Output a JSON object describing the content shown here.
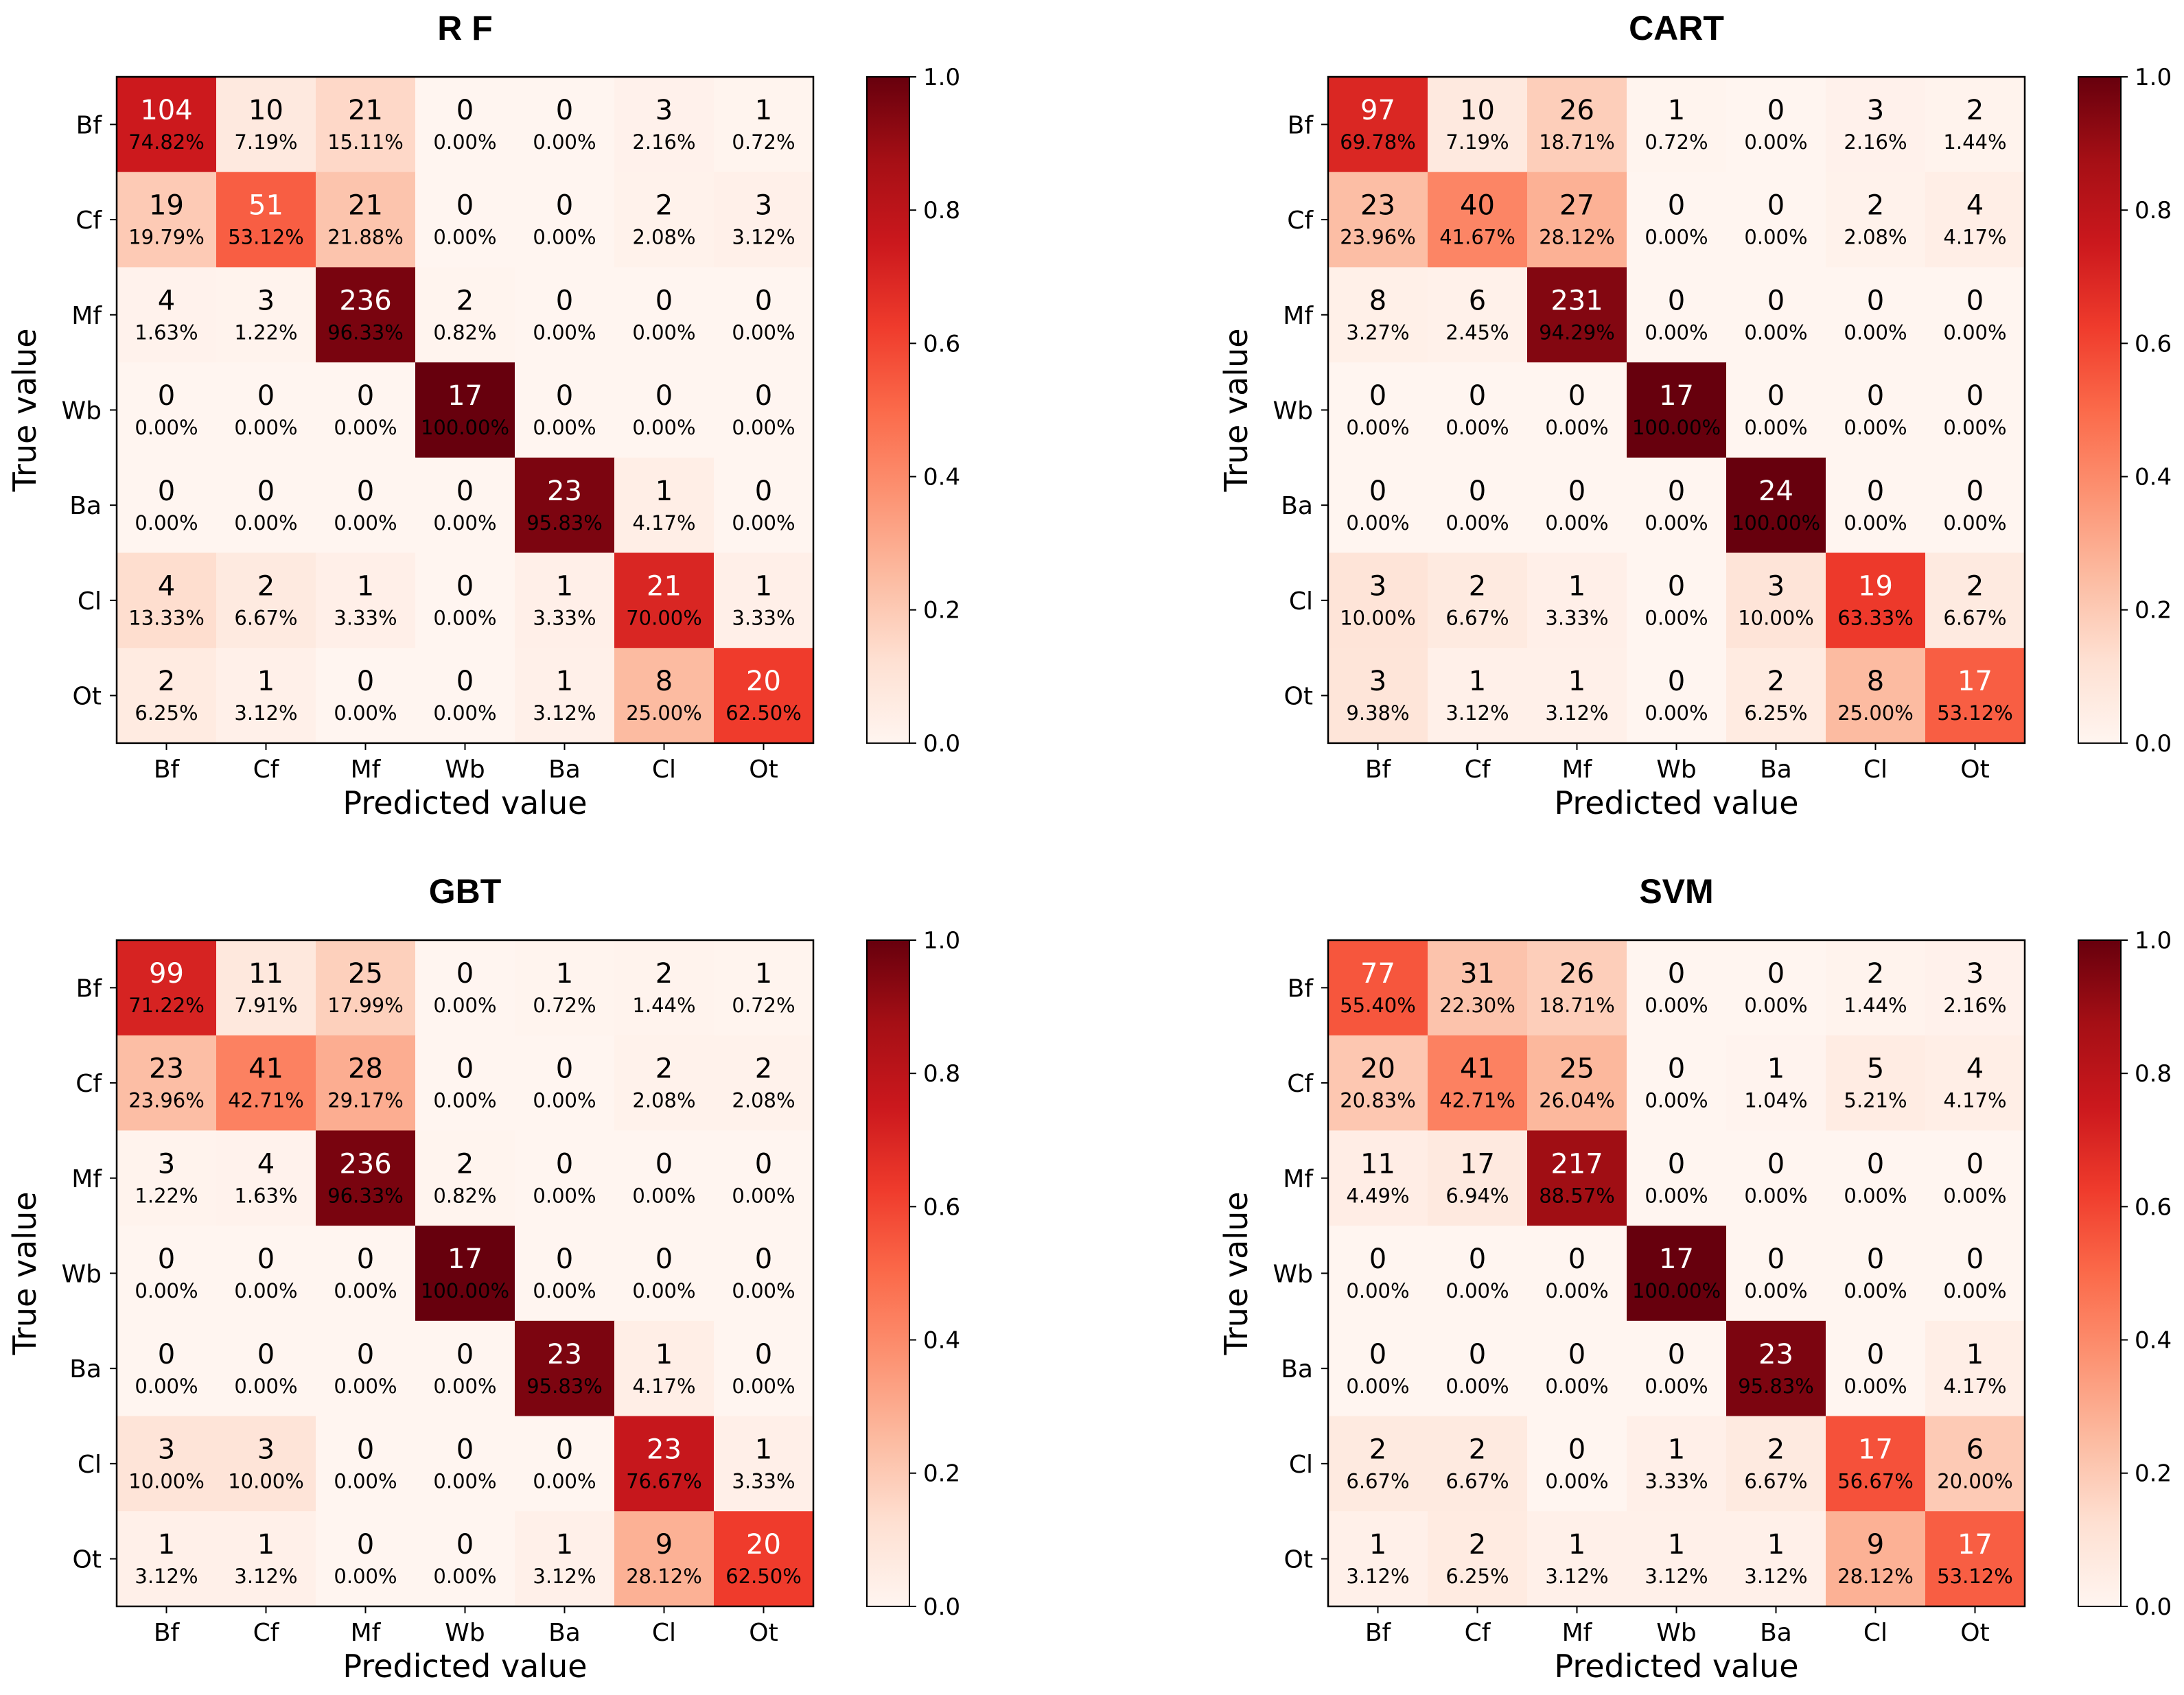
{
  "figure": {
    "xlabel": "Predicted value",
    "ylabel": "True value"
  },
  "chart_data": [
    {
      "type": "heatmap",
      "title": "R F",
      "xlabel": "Predicted value",
      "ylabel": "True value",
      "categories": [
        "Bf",
        "Cf",
        "Mf",
        "Wb",
        "Ba",
        "Cl",
        "Ot"
      ],
      "colorbar": {
        "range": [
          0.0,
          1.0
        ],
        "ticks": [
          "0.0",
          "0.2",
          "0.4",
          "0.6",
          "0.8",
          "1.0"
        ]
      },
      "counts": [
        [
          104,
          10,
          21,
          0,
          0,
          3,
          1
        ],
        [
          19,
          51,
          21,
          0,
          0,
          2,
          3
        ],
        [
          4,
          3,
          236,
          2,
          0,
          0,
          0
        ],
        [
          0,
          0,
          0,
          17,
          0,
          0,
          0
        ],
        [
          0,
          0,
          0,
          0,
          23,
          1,
          0
        ],
        [
          4,
          2,
          1,
          0,
          1,
          21,
          1
        ],
        [
          2,
          1,
          0,
          0,
          1,
          8,
          20
        ]
      ],
      "percents": [
        [
          "74.82%",
          "7.19%",
          "15.11%",
          "0.00%",
          "0.00%",
          "2.16%",
          "0.72%"
        ],
        [
          "19.79%",
          "53.12%",
          "21.88%",
          "0.00%",
          "0.00%",
          "2.08%",
          "3.12%"
        ],
        [
          "1.63%",
          "1.22%",
          "96.33%",
          "0.82%",
          "0.00%",
          "0.00%",
          "0.00%"
        ],
        [
          "0.00%",
          "0.00%",
          "0.00%",
          "100.00%",
          "0.00%",
          "0.00%",
          "0.00%"
        ],
        [
          "0.00%",
          "0.00%",
          "0.00%",
          "0.00%",
          "95.83%",
          "4.17%",
          "0.00%"
        ],
        [
          "13.33%",
          "6.67%",
          "3.33%",
          "0.00%",
          "3.33%",
          "70.00%",
          "3.33%"
        ],
        [
          "6.25%",
          "3.12%",
          "0.00%",
          "0.00%",
          "3.12%",
          "25.00%",
          "62.50%"
        ]
      ]
    },
    {
      "type": "heatmap",
      "title": "CART",
      "xlabel": "Predicted value",
      "ylabel": "True value",
      "categories": [
        "Bf",
        "Cf",
        "Mf",
        "Wb",
        "Ba",
        "Cl",
        "Ot"
      ],
      "colorbar": {
        "range": [
          0.0,
          1.0
        ],
        "ticks": [
          "0.0",
          "0.2",
          "0.4",
          "0.6",
          "0.8",
          "1.0"
        ]
      },
      "counts": [
        [
          97,
          10,
          26,
          1,
          0,
          3,
          2
        ],
        [
          23,
          40,
          27,
          0,
          0,
          2,
          4
        ],
        [
          8,
          6,
          231,
          0,
          0,
          0,
          0
        ],
        [
          0,
          0,
          0,
          17,
          0,
          0,
          0
        ],
        [
          0,
          0,
          0,
          0,
          24,
          0,
          0
        ],
        [
          3,
          2,
          1,
          0,
          3,
          19,
          2
        ],
        [
          3,
          1,
          1,
          0,
          2,
          8,
          17
        ]
      ],
      "percents": [
        [
          "69.78%",
          "7.19%",
          "18.71%",
          "0.72%",
          "0.00%",
          "2.16%",
          "1.44%"
        ],
        [
          "23.96%",
          "41.67%",
          "28.12%",
          "0.00%",
          "0.00%",
          "2.08%",
          "4.17%"
        ],
        [
          "3.27%",
          "2.45%",
          "94.29%",
          "0.00%",
          "0.00%",
          "0.00%",
          "0.00%"
        ],
        [
          "0.00%",
          "0.00%",
          "0.00%",
          "100.00%",
          "0.00%",
          "0.00%",
          "0.00%"
        ],
        [
          "0.00%",
          "0.00%",
          "0.00%",
          "0.00%",
          "100.00%",
          "0.00%",
          "0.00%"
        ],
        [
          "10.00%",
          "6.67%",
          "3.33%",
          "0.00%",
          "10.00%",
          "63.33%",
          "6.67%"
        ],
        [
          "9.38%",
          "3.12%",
          "3.12%",
          "0.00%",
          "6.25%",
          "25.00%",
          "53.12%"
        ]
      ]
    },
    {
      "type": "heatmap",
      "title": "GBT",
      "xlabel": "Predicted value",
      "ylabel": "True value",
      "categories": [
        "Bf",
        "Cf",
        "Mf",
        "Wb",
        "Ba",
        "Cl",
        "Ot"
      ],
      "colorbar": {
        "range": [
          0.0,
          1.0
        ],
        "ticks": [
          "0.0",
          "0.2",
          "0.4",
          "0.6",
          "0.8",
          "1.0"
        ]
      },
      "counts": [
        [
          99,
          11,
          25,
          0,
          1,
          2,
          1
        ],
        [
          23,
          41,
          28,
          0,
          0,
          2,
          2
        ],
        [
          3,
          4,
          236,
          2,
          0,
          0,
          0
        ],
        [
          0,
          0,
          0,
          17,
          0,
          0,
          0
        ],
        [
          0,
          0,
          0,
          0,
          23,
          1,
          0
        ],
        [
          3,
          3,
          0,
          0,
          0,
          23,
          1
        ],
        [
          1,
          1,
          0,
          0,
          1,
          9,
          20
        ]
      ],
      "percents": [
        [
          "71.22%",
          "7.91%",
          "17.99%",
          "0.00%",
          "0.72%",
          "1.44%",
          "0.72%"
        ],
        [
          "23.96%",
          "42.71%",
          "29.17%",
          "0.00%",
          "0.00%",
          "2.08%",
          "2.08%"
        ],
        [
          "1.22%",
          "1.63%",
          "96.33%",
          "0.82%",
          "0.00%",
          "0.00%",
          "0.00%"
        ],
        [
          "0.00%",
          "0.00%",
          "0.00%",
          "100.00%",
          "0.00%",
          "0.00%",
          "0.00%"
        ],
        [
          "0.00%",
          "0.00%",
          "0.00%",
          "0.00%",
          "95.83%",
          "4.17%",
          "0.00%"
        ],
        [
          "10.00%",
          "10.00%",
          "0.00%",
          "0.00%",
          "0.00%",
          "76.67%",
          "3.33%"
        ],
        [
          "3.12%",
          "3.12%",
          "0.00%",
          "0.00%",
          "3.12%",
          "28.12%",
          "62.50%"
        ]
      ]
    },
    {
      "type": "heatmap",
      "title": "SVM",
      "xlabel": "Predicted value",
      "ylabel": "True value",
      "categories": [
        "Bf",
        "Cf",
        "Mf",
        "Wb",
        "Ba",
        "Cl",
        "Ot"
      ],
      "colorbar": {
        "range": [
          0.0,
          1.0
        ],
        "ticks": [
          "0.0",
          "0.2",
          "0.4",
          "0.6",
          "0.8",
          "1.0"
        ]
      },
      "counts": [
        [
          77,
          31,
          26,
          0,
          0,
          2,
          3
        ],
        [
          20,
          41,
          25,
          0,
          1,
          5,
          4
        ],
        [
          11,
          17,
          217,
          0,
          0,
          0,
          0
        ],
        [
          0,
          0,
          0,
          17,
          0,
          0,
          0
        ],
        [
          0,
          0,
          0,
          0,
          23,
          0,
          1
        ],
        [
          2,
          2,
          0,
          1,
          2,
          17,
          6
        ],
        [
          1,
          2,
          1,
          1,
          1,
          9,
          17
        ]
      ],
      "percents": [
        [
          "55.40%",
          "22.30%",
          "18.71%",
          "0.00%",
          "0.00%",
          "1.44%",
          "2.16%"
        ],
        [
          "20.83%",
          "42.71%",
          "26.04%",
          "0.00%",
          "1.04%",
          "5.21%",
          "4.17%"
        ],
        [
          "4.49%",
          "6.94%",
          "88.57%",
          "0.00%",
          "0.00%",
          "0.00%",
          "0.00%"
        ],
        [
          "0.00%",
          "0.00%",
          "0.00%",
          "100.00%",
          "0.00%",
          "0.00%",
          "0.00%"
        ],
        [
          "0.00%",
          "0.00%",
          "0.00%",
          "0.00%",
          "95.83%",
          "0.00%",
          "4.17%"
        ],
        [
          "6.67%",
          "6.67%",
          "0.00%",
          "3.33%",
          "6.67%",
          "56.67%",
          "20.00%"
        ],
        [
          "3.12%",
          "6.25%",
          "3.12%",
          "3.12%",
          "3.12%",
          "28.12%",
          "53.12%"
        ]
      ]
    }
  ]
}
